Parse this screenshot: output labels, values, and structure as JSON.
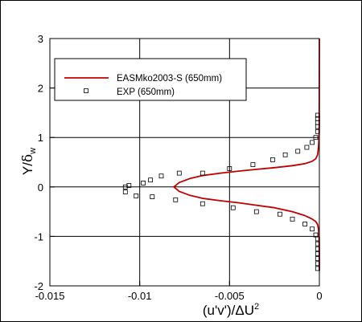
{
  "chart_data": {
    "type": "line",
    "xlabel": "(u'v')/ΔU²",
    "xlabel_parts": {
      "base": "(u'v')/ΔU",
      "sup": "2"
    },
    "ylabel": "Y/δw",
    "ylabel_parts": {
      "main": "Y/",
      "symbol": "δ",
      "sub": "w"
    },
    "xlim": [
      -0.015,
      0
    ],
    "ylim": [
      -2,
      3
    ],
    "x_ticks": [
      -0.015,
      -0.01,
      -0.005,
      0
    ],
    "x_tick_labels": [
      "-0.015",
      "-0.01",
      "-0.005",
      "0"
    ],
    "y_ticks": [
      -2,
      -1,
      0,
      1,
      2,
      3
    ],
    "y_tick_labels": [
      "-2",
      "-1",
      "0",
      "1",
      "2",
      "3"
    ],
    "grid": true,
    "legend_position": "top-left",
    "series": [
      {
        "name": "EASMko2003-S (650mm)",
        "kind": "line",
        "color": "#c00000",
        "x": [
          0,
          -1e-05,
          -2e-05,
          -5e-05,
          -0.0001,
          -0.0002,
          -0.0004,
          -0.0008,
          -0.0015,
          -0.0025,
          -0.0035,
          -0.0045,
          -0.0055,
          -0.0065,
          -0.0072,
          -0.0078,
          -0.0081,
          -0.0078,
          -0.0072,
          -0.0065,
          -0.0055,
          -0.0045,
          -0.0035,
          -0.0025,
          -0.0015,
          -0.0008,
          -0.0004,
          -0.0002,
          -0.0001,
          -5e-05,
          -2e-05,
          -1e-05,
          0
        ],
        "y": [
          3.0,
          1.3,
          1.0,
          0.8,
          0.65,
          0.57,
          0.52,
          0.47,
          0.43,
          0.39,
          0.355,
          0.32,
          0.28,
          0.23,
          0.17,
          0.09,
          0.0,
          -0.09,
          -0.17,
          -0.23,
          -0.28,
          -0.32,
          -0.37,
          -0.42,
          -0.5,
          -0.58,
          -0.65,
          -0.7,
          -0.76,
          -0.85,
          -1.0,
          -1.2,
          -1.7
        ]
      },
      {
        "name": "EXP (650mm)",
        "kind": "markers",
        "color": "#000000",
        "x": [
          -0.0001,
          -0.0001,
          -0.0001,
          -0.0001,
          -0.0001,
          -0.0002,
          -0.0004,
          -0.0007,
          -0.0012,
          -0.0019,
          -0.0026,
          -0.0037,
          -0.005,
          -0.0065,
          -0.0078,
          -0.0088,
          -0.0094,
          -0.0098,
          -0.0106,
          -0.0108,
          -0.0108,
          -0.0102,
          -0.0093,
          -0.008,
          -0.0065,
          -0.0048,
          -0.0035,
          -0.0022,
          -0.0015,
          -0.0008,
          -0.0004,
          -0.0002,
          -0.0001,
          -0.0001,
          -0.0001,
          -0.0001,
          -0.0001,
          -0.0001,
          -0.0001
        ],
        "y": [
          1.45,
          1.38,
          1.3,
          1.22,
          1.12,
          1.0,
          0.9,
          0.8,
          0.72,
          0.65,
          0.55,
          0.45,
          0.37,
          0.28,
          0.28,
          0.22,
          0.14,
          0.08,
          0.03,
          0.0,
          -0.1,
          -0.18,
          -0.2,
          -0.26,
          -0.34,
          -0.42,
          -0.5,
          -0.55,
          -0.65,
          -0.75,
          -0.85,
          -0.97,
          -1.05,
          -1.15,
          -1.25,
          -1.35,
          -1.45,
          -1.55,
          -1.65
        ]
      }
    ]
  }
}
